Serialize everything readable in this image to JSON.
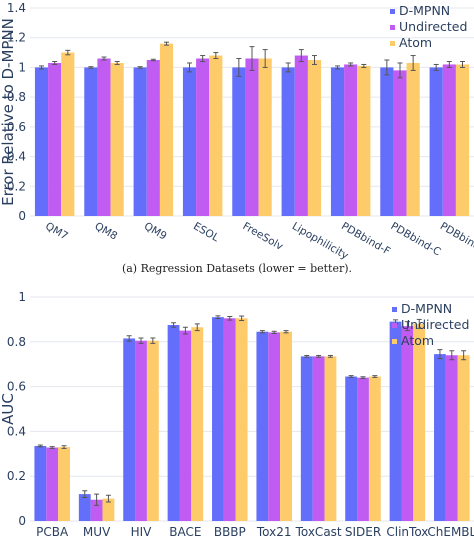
{
  "captions": {
    "a": "(a) Regression Datasets (lower = better)."
  },
  "colors": {
    "dmpnn": "#636efa",
    "undirected": "#c05cf2",
    "atom": "#fecb6a"
  },
  "chart_data": [
    {
      "type": "bar",
      "ylabel": "Error Relative to D-MPNN",
      "ylim": [
        0,
        1.4
      ],
      "yticks": [
        0,
        0.2,
        0.4,
        0.6,
        0.8,
        1,
        1.2,
        1.4
      ],
      "yticklabels": [
        "0",
        "0.2",
        "0.4",
        "0.6",
        "0.8",
        "1",
        "1.2",
        "1.4"
      ],
      "grid": true,
      "legend_position": "top-right",
      "categories": [
        "QM7",
        "QM8",
        "QM9",
        "ESOL",
        "FreeSolv",
        "Lipophilicity",
        "PDBbind-F",
        "PDBbind-C",
        "PDBbind-R"
      ],
      "series": [
        {
          "name": "D-MPNN",
          "color": "#636efa",
          "values": [
            1,
            1,
            1,
            1,
            1,
            1,
            1,
            1,
            1
          ],
          "errors": [
            0.01,
            0.005,
            0.005,
            0.03,
            0.06,
            0.03,
            0.01,
            0.05,
            0.02
          ]
        },
        {
          "name": "Undirected",
          "color": "#c05cf2",
          "values": [
            1.03,
            1.06,
            1.05,
            1.06,
            1.06,
            1.08,
            1.02,
            0.98,
            1.02
          ],
          "errors": [
            0.01,
            0.01,
            0.005,
            0.02,
            0.08,
            0.04,
            0.01,
            0.05,
            0.02
          ]
        },
        {
          "name": "Atom",
          "color": "#fecb6a",
          "values": [
            1.1,
            1.03,
            1.16,
            1.08,
            1.06,
            1.05,
            1.01,
            1.03,
            1.02
          ],
          "errors": [
            0.015,
            0.01,
            0.01,
            0.02,
            0.06,
            0.03,
            0.01,
            0.05,
            0.02
          ]
        }
      ]
    },
    {
      "type": "bar",
      "ylabel": "AUC",
      "ylim": [
        0,
        1
      ],
      "yticks": [
        0,
        0.2,
        0.4,
        0.6,
        0.8,
        1
      ],
      "yticklabels": [
        "0",
        "0.2",
        "0.4",
        "0.6",
        "0.8",
        "1"
      ],
      "grid": true,
      "legend_position": "top-right",
      "categories": [
        "PCBA",
        "MUV",
        "HIV",
        "BACE",
        "BBBP",
        "Tox21",
        "ToxCast",
        "SIDER",
        "ClinTox",
        "ChEMBL"
      ],
      "series": [
        {
          "name": "D-MPNN",
          "color": "#636efa",
          "values": [
            0.335,
            0.12,
            0.815,
            0.875,
            0.91,
            0.845,
            0.735,
            0.645,
            0.89,
            0.745
          ],
          "errors": [
            0.004,
            0.015,
            0.012,
            0.01,
            0.006,
            0.005,
            0.004,
            0.004,
            0.008,
            0.02
          ]
        },
        {
          "name": "Undirected",
          "color": "#c05cf2",
          "values": [
            0.328,
            0.095,
            0.805,
            0.85,
            0.905,
            0.842,
            0.735,
            0.64,
            0.87,
            0.74
          ],
          "errors": [
            0.004,
            0.025,
            0.012,
            0.015,
            0.008,
            0.005,
            0.004,
            0.004,
            0.02,
            0.02
          ]
        },
        {
          "name": "Atom",
          "color": "#fecb6a",
          "values": [
            0.33,
            0.1,
            0.805,
            0.865,
            0.905,
            0.845,
            0.735,
            0.645,
            0.88,
            0.74
          ],
          "errors": [
            0.006,
            0.015,
            0.012,
            0.015,
            0.01,
            0.005,
            0.004,
            0.004,
            0.02,
            0.02
          ]
        }
      ]
    }
  ]
}
